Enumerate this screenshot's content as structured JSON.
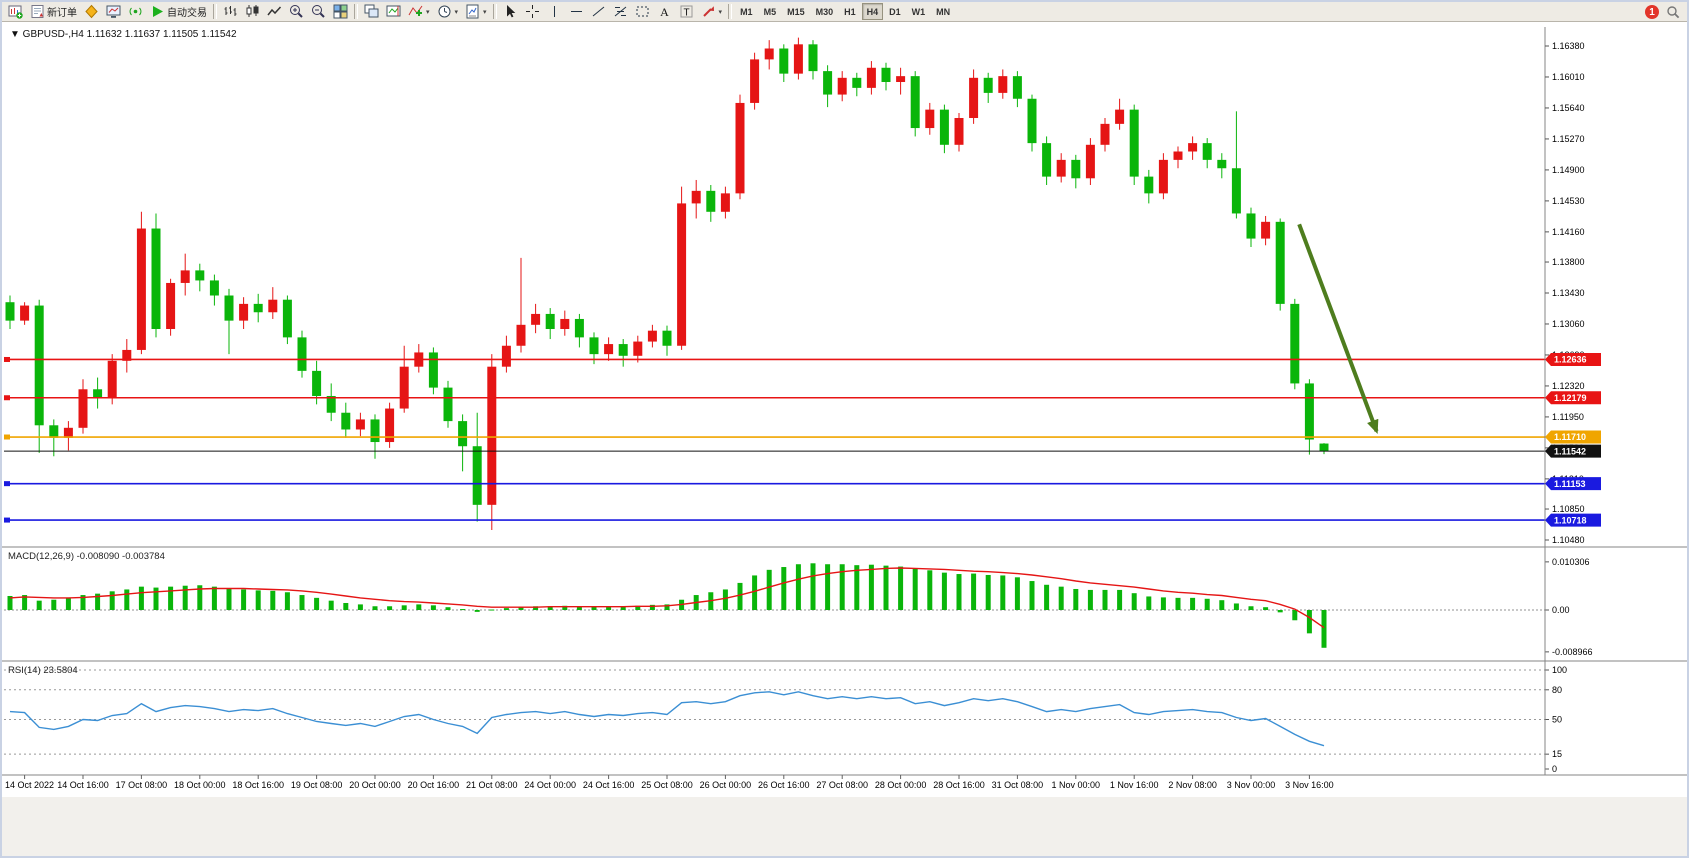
{
  "app": {
    "name": "MetaTrader terminal",
    "language": "zh-CN"
  },
  "toolbar": {
    "new_order_label": "新订单",
    "auto_trading_label": "自动交易",
    "notification_count": "1",
    "timeframes": [
      "M1",
      "M5",
      "M15",
      "M30",
      "H1",
      "H4",
      "D1",
      "W1",
      "MN"
    ],
    "active_timeframe": "H4",
    "buttons": [
      {
        "name": "new-chart",
        "icon": "chart-plus-icon"
      },
      {
        "name": "new-order",
        "icon": "order-form-icon",
        "label": "新订单"
      },
      {
        "name": "metaquotes",
        "icon": "diamond-icon"
      },
      {
        "name": "chart-window",
        "icon": "monitor-icon"
      },
      {
        "name": "signals",
        "icon": "signals-icon"
      },
      {
        "name": "auto-trading",
        "icon": "play-icon",
        "label": "自动交易"
      },
      {
        "sep": true
      },
      {
        "name": "bar-chart-mode",
        "icon": "bars-icon"
      },
      {
        "name": "candlestick-mode",
        "icon": "candles-icon"
      },
      {
        "name": "line-chart-mode",
        "icon": "line-icon"
      },
      {
        "name": "zoom-in",
        "icon": "zoom-in-icon"
      },
      {
        "name": "zoom-out",
        "icon": "zoom-out-icon"
      },
      {
        "name": "tile-windows",
        "icon": "tile-icon"
      },
      {
        "sep": true
      },
      {
        "name": "arrange-windows",
        "icon": "cascade-icon"
      },
      {
        "name": "auto-scroll",
        "icon": "track-icon"
      },
      {
        "name": "indicators",
        "icon": "indicator-icon",
        "dropdown": true
      },
      {
        "name": "periods",
        "icon": "clock-icon",
        "dropdown": true
      },
      {
        "name": "templates",
        "icon": "template-icon",
        "dropdown": true
      },
      {
        "sep": true
      },
      {
        "name": "cursor",
        "icon": "cursor-icon"
      },
      {
        "name": "crosshair",
        "icon": "crosshair-icon"
      },
      {
        "name": "vertical-line",
        "icon": "vline-icon"
      },
      {
        "name": "horizontal-line",
        "icon": "hline-icon"
      },
      {
        "name": "trendline",
        "icon": "trendline-icon"
      },
      {
        "name": "fibonacci",
        "icon": "fibonacci-icon"
      },
      {
        "name": "shapes",
        "icon": "shapes-icon"
      },
      {
        "name": "text",
        "icon": "text-icon"
      },
      {
        "name": "text-label",
        "icon": "label-icon"
      },
      {
        "name": "arrows-tool",
        "icon": "arrow-tool-icon",
        "dropdown": true
      },
      {
        "sep": true
      }
    ]
  },
  "chart": {
    "symbol_title": "GBPUSD-,H4",
    "quote_open": "1.11632",
    "quote_high": "1.11637",
    "quote_low": "1.11505",
    "quote_close": "1.11542"
  },
  "chart_data": {
    "type": "candlestick",
    "title": "GBPUSD- H4",
    "up_color": "#e51515",
    "down_color": "#0ab50a",
    "price_axis_ticks": [
      "1.16380",
      "1.16010",
      "1.15640",
      "1.15270",
      "1.14900",
      "1.14530",
      "1.14160",
      "1.13800",
      "1.13430",
      "1.13060",
      "1.12690",
      "1.12320",
      "1.11950",
      "1.11580",
      "1.11210",
      "1.10850",
      "1.10480"
    ],
    "time_labels": [
      "14 Oct 2022",
      "14 Oct 16:00",
      "17 Oct 08:00",
      "18 Oct 00:00",
      "18 Oct 16:00",
      "19 Oct 08:00",
      "20 Oct 00:00",
      "20 Oct 16:00",
      "21 Oct 08:00",
      "24 Oct 00:00",
      "24 Oct 16:00",
      "25 Oct 08:00",
      "26 Oct 00:00",
      "26 Oct 16:00",
      "27 Oct 08:00",
      "28 Oct 00:00",
      "28 Oct 16:00",
      "31 Oct 08:00",
      "1 Nov 00:00",
      "1 Nov 16:00",
      "2 Nov 08:00",
      "3 Nov 00:00",
      "3 Nov 16:00"
    ],
    "first_label_bar": 1,
    "bars_per_label": 4,
    "ohlc": [
      [
        1.1332,
        1.134,
        1.13,
        1.131
      ],
      [
        1.131,
        1.1332,
        1.1305,
        1.1328
      ],
      [
        1.1328,
        1.1335,
        1.1152,
        1.1185
      ],
      [
        1.1185,
        1.1192,
        1.1148,
        1.117
      ],
      [
        1.117,
        1.119,
        1.1155,
        1.1182
      ],
      [
        1.1182,
        1.124,
        1.1175,
        1.1228
      ],
      [
        1.1228,
        1.1242,
        1.1205,
        1.1218
      ],
      [
        1.1218,
        1.127,
        1.121,
        1.1262
      ],
      [
        1.1262,
        1.1288,
        1.1248,
        1.1275
      ],
      [
        1.1275,
        1.144,
        1.127,
        1.142
      ],
      [
        1.142,
        1.1438,
        1.129,
        1.13
      ],
      [
        1.13,
        1.136,
        1.1292,
        1.1355
      ],
      [
        1.1355,
        1.139,
        1.134,
        1.137
      ],
      [
        1.137,
        1.1378,
        1.1345,
        1.1358
      ],
      [
        1.1358,
        1.1365,
        1.1328,
        1.134
      ],
      [
        1.134,
        1.1348,
        1.127,
        1.131
      ],
      [
        1.131,
        1.1338,
        1.13,
        1.133
      ],
      [
        1.133,
        1.1342,
        1.1308,
        1.132
      ],
      [
        1.132,
        1.135,
        1.1312,
        1.1335
      ],
      [
        1.1335,
        1.134,
        1.1282,
        1.129
      ],
      [
        1.129,
        1.1298,
        1.1242,
        1.125
      ],
      [
        1.125,
        1.1262,
        1.121,
        1.122
      ],
      [
        1.122,
        1.1235,
        1.119,
        1.12
      ],
      [
        1.12,
        1.1212,
        1.117,
        1.118
      ],
      [
        1.118,
        1.12,
        1.1172,
        1.1192
      ],
      [
        1.1192,
        1.1198,
        1.1145,
        1.1165
      ],
      [
        1.1165,
        1.1212,
        1.1158,
        1.1205
      ],
      [
        1.1205,
        1.128,
        1.12,
        1.1255
      ],
      [
        1.1255,
        1.1282,
        1.1248,
        1.1272
      ],
      [
        1.1272,
        1.1278,
        1.1222,
        1.123
      ],
      [
        1.123,
        1.1238,
        1.1182,
        1.119
      ],
      [
        1.119,
        1.1198,
        1.113,
        1.116
      ],
      [
        1.116,
        1.12,
        1.107,
        1.109
      ],
      [
        1.109,
        1.127,
        1.106,
        1.1255
      ],
      [
        1.1255,
        1.1292,
        1.1248,
        1.128
      ],
      [
        1.128,
        1.1385,
        1.1272,
        1.1305
      ],
      [
        1.1305,
        1.133,
        1.1295,
        1.1318
      ],
      [
        1.1318,
        1.1325,
        1.1288,
        1.13
      ],
      [
        1.13,
        1.1322,
        1.1292,
        1.1312
      ],
      [
        1.1312,
        1.1318,
        1.1278,
        1.129
      ],
      [
        1.129,
        1.1296,
        1.1258,
        1.127
      ],
      [
        1.127,
        1.129,
        1.1262,
        1.1282
      ],
      [
        1.1282,
        1.1288,
        1.1255,
        1.1268
      ],
      [
        1.1268,
        1.1292,
        1.126,
        1.1285
      ],
      [
        1.1285,
        1.1305,
        1.1278,
        1.1298
      ],
      [
        1.1298,
        1.1304,
        1.1268,
        1.128
      ],
      [
        1.128,
        1.147,
        1.1275,
        1.145
      ],
      [
        1.145,
        1.1478,
        1.1432,
        1.1465
      ],
      [
        1.1465,
        1.1472,
        1.1428,
        1.144
      ],
      [
        1.144,
        1.147,
        1.1432,
        1.1462
      ],
      [
        1.1462,
        1.158,
        1.1455,
        1.157
      ],
      [
        1.157,
        1.163,
        1.1562,
        1.1622
      ],
      [
        1.1622,
        1.1645,
        1.161,
        1.1635
      ],
      [
        1.1635,
        1.164,
        1.1595,
        1.1605
      ],
      [
        1.1605,
        1.1648,
        1.1598,
        1.164
      ],
      [
        1.164,
        1.1645,
        1.1598,
        1.1608
      ],
      [
        1.1608,
        1.1615,
        1.1565,
        1.158
      ],
      [
        1.158,
        1.1608,
        1.1572,
        1.16
      ],
      [
        1.16,
        1.1606,
        1.1578,
        1.1588
      ],
      [
        1.1588,
        1.162,
        1.158,
        1.1612
      ],
      [
        1.1612,
        1.1618,
        1.1585,
        1.1595
      ],
      [
        1.1595,
        1.1612,
        1.158,
        1.1602
      ],
      [
        1.1602,
        1.1608,
        1.153,
        1.154
      ],
      [
        1.154,
        1.157,
        1.1532,
        1.1562
      ],
      [
        1.1562,
        1.1568,
        1.151,
        1.152
      ],
      [
        1.152,
        1.1558,
        1.1512,
        1.1552
      ],
      [
        1.1552,
        1.161,
        1.1545,
        1.16
      ],
      [
        1.16,
        1.1606,
        1.157,
        1.1582
      ],
      [
        1.1582,
        1.161,
        1.1575,
        1.1602
      ],
      [
        1.1602,
        1.1608,
        1.1565,
        1.1575
      ],
      [
        1.1575,
        1.158,
        1.1512,
        1.1522
      ],
      [
        1.1522,
        1.153,
        1.1472,
        1.1482
      ],
      [
        1.1482,
        1.151,
        1.1475,
        1.1502
      ],
      [
        1.1502,
        1.1508,
        1.1468,
        1.148
      ],
      [
        1.148,
        1.1528,
        1.1472,
        1.152
      ],
      [
        1.152,
        1.1552,
        1.1512,
        1.1545
      ],
      [
        1.1545,
        1.1575,
        1.1538,
        1.1562
      ],
      [
        1.1562,
        1.1568,
        1.1472,
        1.1482
      ],
      [
        1.1482,
        1.149,
        1.145,
        1.1462
      ],
      [
        1.1462,
        1.151,
        1.1455,
        1.1502
      ],
      [
        1.1502,
        1.1518,
        1.1492,
        1.1512
      ],
      [
        1.1512,
        1.153,
        1.1502,
        1.1522
      ],
      [
        1.1522,
        1.1528,
        1.1492,
        1.1502
      ],
      [
        1.1502,
        1.151,
        1.148,
        1.1492
      ],
      [
        1.1492,
        1.156,
        1.1432,
        1.1438
      ],
      [
        1.1438,
        1.1445,
        1.1398,
        1.1408
      ],
      [
        1.1408,
        1.1435,
        1.14,
        1.1428
      ],
      [
        1.1428,
        1.1432,
        1.1322,
        1.133
      ],
      [
        1.133,
        1.1336,
        1.1228,
        1.1235
      ],
      [
        1.1235,
        1.124,
        1.115,
        1.1168
      ],
      [
        1.11632,
        1.11637,
        1.11505,
        1.11542
      ]
    ],
    "hlines": [
      {
        "price": 1.12636,
        "label": "1.12636",
        "color": "#e81414",
        "kind": "resistance"
      },
      {
        "price": 1.12179,
        "label": "1.12179",
        "color": "#e81414",
        "kind": "resistance"
      },
      {
        "price": 1.1171,
        "label": "1.11710",
        "color": "#f0a500",
        "kind": "pivot"
      },
      {
        "price": 1.11542,
        "label": "1.11542",
        "color": "#111111",
        "kind": "current-price"
      },
      {
        "price": 1.11153,
        "label": "1.11153",
        "color": "#1a1ae0",
        "kind": "support"
      },
      {
        "price": 1.10718,
        "label": "1.10718",
        "color": "#1a1ae0",
        "kind": "support"
      }
    ],
    "arrow_annotation": {
      "from_bar": 88.3,
      "from_price": 1.1425,
      "to_bar": 93.6,
      "to_price": 1.1178,
      "color": "#4e7d1e"
    },
    "indicators": [
      {
        "name": "MACD",
        "label": "MACD(12,26,9) -0.008090 -0.003784",
        "histogram_color": "#0ab50a",
        "signal_color": "#e51515",
        "axis_ticks": [
          "0.010306",
          "0.00",
          "-0.008966"
        ],
        "histogram": [
          0.003,
          0.0032,
          0.002,
          0.0022,
          0.0026,
          0.0032,
          0.0035,
          0.004,
          0.0044,
          0.005,
          0.0048,
          0.005,
          0.0052,
          0.0053,
          0.005,
          0.0046,
          0.0044,
          0.0042,
          0.0041,
          0.0038,
          0.0032,
          0.0026,
          0.002,
          0.0015,
          0.0012,
          0.0008,
          0.0008,
          0.001,
          0.0012,
          0.001,
          0.0006,
          0.0002,
          -0.0004,
          0.0001,
          0.0004,
          0.0006,
          0.0008,
          0.0008,
          0.0009,
          0.0008,
          0.0007,
          0.0008,
          0.0008,
          0.0009,
          0.0011,
          0.0012,
          0.0022,
          0.0032,
          0.0038,
          0.0044,
          0.0058,
          0.0074,
          0.0086,
          0.0092,
          0.0098,
          0.01,
          0.0098,
          0.0098,
          0.0096,
          0.0097,
          0.0095,
          0.0093,
          0.0088,
          0.0085,
          0.008,
          0.0077,
          0.0078,
          0.0075,
          0.0074,
          0.007,
          0.0062,
          0.0054,
          0.005,
          0.0045,
          0.0043,
          0.0043,
          0.0043,
          0.0036,
          0.0029,
          0.0027,
          0.0026,
          0.0026,
          0.0024,
          0.0021,
          0.0014,
          0.0008,
          0.0006,
          -0.0005,
          -0.0022,
          -0.005,
          -0.00809
        ],
        "signal": [
          0.0026,
          0.0028,
          0.0027,
          0.0026,
          0.0026,
          0.0027,
          0.0029,
          0.0031,
          0.0034,
          0.0037,
          0.0039,
          0.0041,
          0.0043,
          0.0045,
          0.0046,
          0.0046,
          0.0046,
          0.0045,
          0.0044,
          0.0043,
          0.0041,
          0.0038,
          0.0034,
          0.003,
          0.0026,
          0.0023,
          0.002,
          0.0018,
          0.0017,
          0.0015,
          0.0013,
          0.0011,
          0.0008,
          0.0006,
          0.0006,
          0.0006,
          0.0006,
          0.0007,
          0.0007,
          0.0007,
          0.0007,
          0.0007,
          0.0007,
          0.0008,
          0.0008,
          0.0009,
          0.0012,
          0.0016,
          0.002,
          0.0025,
          0.0032,
          0.004,
          0.0049,
          0.0058,
          0.0066,
          0.0073,
          0.0078,
          0.0082,
          0.0085,
          0.0087,
          0.0089,
          0.009,
          0.0089,
          0.0088,
          0.0087,
          0.0085,
          0.0083,
          0.0082,
          0.008,
          0.0078,
          0.0075,
          0.0071,
          0.0067,
          0.0062,
          0.0058,
          0.0055,
          0.0052,
          0.0049,
          0.0045,
          0.0041,
          0.0038,
          0.0036,
          0.0033,
          0.0031,
          0.0027,
          0.0023,
          0.002,
          0.0012,
          0.0002,
          -0.0016,
          -0.003784
        ]
      },
      {
        "name": "RSI",
        "label": "RSI(14) 23.5804",
        "line_color": "#3b8fd4",
        "axis_ticks": [
          "100",
          "80",
          "50",
          "15",
          "0"
        ],
        "levels": [
          100,
          80,
          50,
          15
        ],
        "values": [
          58,
          57,
          42,
          40,
          43,
          50,
          49,
          54,
          56,
          66,
          58,
          62,
          64,
          63,
          61,
          58,
          60,
          59,
          61,
          56,
          52,
          48,
          46,
          44,
          46,
          43,
          48,
          53,
          55,
          50,
          46,
          43,
          36,
          52,
          55,
          57,
          58,
          56,
          58,
          55,
          53,
          55,
          54,
          56,
          57,
          55,
          67,
          68,
          66,
          68,
          74,
          77,
          78,
          75,
          78,
          74,
          71,
          73,
          71,
          73,
          71,
          72,
          66,
          68,
          64,
          67,
          71,
          69,
          71,
          68,
          63,
          58,
          60,
          58,
          61,
          63,
          65,
          57,
          55,
          58,
          59,
          60,
          58,
          57,
          52,
          49,
          51,
          43,
          35,
          28,
          23.58
        ]
      }
    ]
  }
}
